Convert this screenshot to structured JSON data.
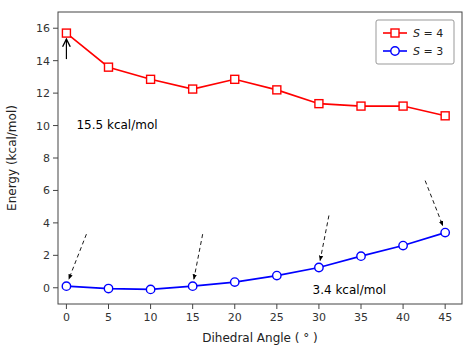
{
  "chart_data": {
    "type": "line",
    "x": [
      0,
      5,
      10,
      15,
      20,
      25,
      30,
      35,
      40,
      45
    ],
    "series": [
      {
        "name": "S = 4",
        "color": "#FF0000",
        "marker": "square",
        "values": [
          15.7,
          13.6,
          12.85,
          12.25,
          12.85,
          12.2,
          11.35,
          11.2,
          11.2,
          10.6
        ]
      },
      {
        "name": "S = 3",
        "color": "#0000FF",
        "marker": "circle",
        "values": [
          0.1,
          -0.05,
          -0.1,
          0.1,
          0.35,
          0.75,
          1.25,
          1.95,
          2.6,
          3.4
        ]
      }
    ],
    "xlabel": "Dihedral Angle ( ° )",
    "ylabel": "Energy (kcal/mol)",
    "xlim": [
      -1,
      47
    ],
    "ylim": [
      -1,
      17
    ],
    "xticks": [
      0,
      5,
      10,
      15,
      20,
      25,
      30,
      35,
      40,
      45
    ],
    "yticks": [
      0,
      2,
      4,
      6,
      8,
      10,
      12,
      14,
      16
    ],
    "annotations": [
      "15.5 kcal/mol",
      "3.4 kcal/mol"
    ],
    "legend": "upper right",
    "grid": false
  }
}
